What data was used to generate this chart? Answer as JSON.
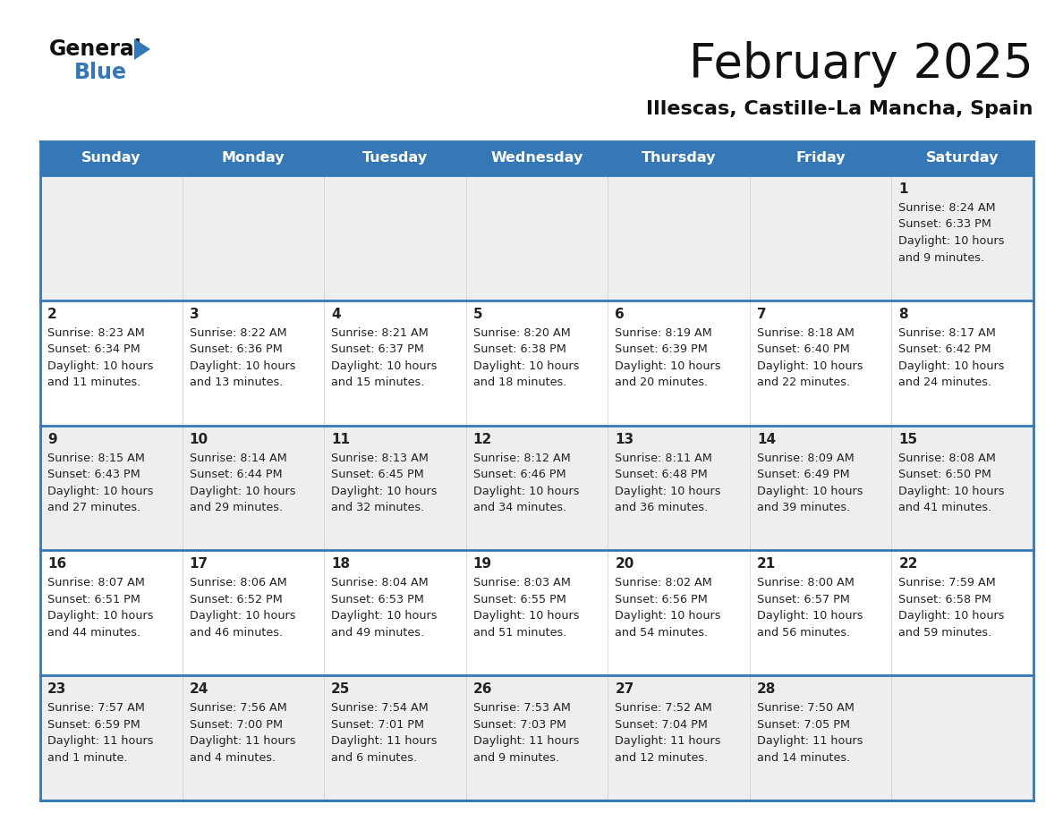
{
  "title": "February 2025",
  "subtitle": "Illescas, Castille-La Mancha, Spain",
  "days_of_week": [
    "Sunday",
    "Monday",
    "Tuesday",
    "Wednesday",
    "Thursday",
    "Friday",
    "Saturday"
  ],
  "header_bg": "#3578b5",
  "header_text": "#ffffff",
  "row_bg_gray": "#eeeeee",
  "row_bg_white": "#ffffff",
  "divider_color": "#3578b5",
  "text_color": "#222222",
  "calendar_data": [
    [
      null,
      null,
      null,
      null,
      null,
      null,
      {
        "day": "1",
        "sunrise": "8:24 AM",
        "sunset": "6:33 PM",
        "daylight_l1": "Daylight: 10 hours",
        "daylight_l2": "and 9 minutes."
      }
    ],
    [
      {
        "day": "2",
        "sunrise": "8:23 AM",
        "sunset": "6:34 PM",
        "daylight_l1": "Daylight: 10 hours",
        "daylight_l2": "and 11 minutes."
      },
      {
        "day": "3",
        "sunrise": "8:22 AM",
        "sunset": "6:36 PM",
        "daylight_l1": "Daylight: 10 hours",
        "daylight_l2": "and 13 minutes."
      },
      {
        "day": "4",
        "sunrise": "8:21 AM",
        "sunset": "6:37 PM",
        "daylight_l1": "Daylight: 10 hours",
        "daylight_l2": "and 15 minutes."
      },
      {
        "day": "5",
        "sunrise": "8:20 AM",
        "sunset": "6:38 PM",
        "daylight_l1": "Daylight: 10 hours",
        "daylight_l2": "and 18 minutes."
      },
      {
        "day": "6",
        "sunrise": "8:19 AM",
        "sunset": "6:39 PM",
        "daylight_l1": "Daylight: 10 hours",
        "daylight_l2": "and 20 minutes."
      },
      {
        "day": "7",
        "sunrise": "8:18 AM",
        "sunset": "6:40 PM",
        "daylight_l1": "Daylight: 10 hours",
        "daylight_l2": "and 22 minutes."
      },
      {
        "day": "8",
        "sunrise": "8:17 AM",
        "sunset": "6:42 PM",
        "daylight_l1": "Daylight: 10 hours",
        "daylight_l2": "and 24 minutes."
      }
    ],
    [
      {
        "day": "9",
        "sunrise": "8:15 AM",
        "sunset": "6:43 PM",
        "daylight_l1": "Daylight: 10 hours",
        "daylight_l2": "and 27 minutes."
      },
      {
        "day": "10",
        "sunrise": "8:14 AM",
        "sunset": "6:44 PM",
        "daylight_l1": "Daylight: 10 hours",
        "daylight_l2": "and 29 minutes."
      },
      {
        "day": "11",
        "sunrise": "8:13 AM",
        "sunset": "6:45 PM",
        "daylight_l1": "Daylight: 10 hours",
        "daylight_l2": "and 32 minutes."
      },
      {
        "day": "12",
        "sunrise": "8:12 AM",
        "sunset": "6:46 PM",
        "daylight_l1": "Daylight: 10 hours",
        "daylight_l2": "and 34 minutes."
      },
      {
        "day": "13",
        "sunrise": "8:11 AM",
        "sunset": "6:48 PM",
        "daylight_l1": "Daylight: 10 hours",
        "daylight_l2": "and 36 minutes."
      },
      {
        "day": "14",
        "sunrise": "8:09 AM",
        "sunset": "6:49 PM",
        "daylight_l1": "Daylight: 10 hours",
        "daylight_l2": "and 39 minutes."
      },
      {
        "day": "15",
        "sunrise": "8:08 AM",
        "sunset": "6:50 PM",
        "daylight_l1": "Daylight: 10 hours",
        "daylight_l2": "and 41 minutes."
      }
    ],
    [
      {
        "day": "16",
        "sunrise": "8:07 AM",
        "sunset": "6:51 PM",
        "daylight_l1": "Daylight: 10 hours",
        "daylight_l2": "and 44 minutes."
      },
      {
        "day": "17",
        "sunrise": "8:06 AM",
        "sunset": "6:52 PM",
        "daylight_l1": "Daylight: 10 hours",
        "daylight_l2": "and 46 minutes."
      },
      {
        "day": "18",
        "sunrise": "8:04 AM",
        "sunset": "6:53 PM",
        "daylight_l1": "Daylight: 10 hours",
        "daylight_l2": "and 49 minutes."
      },
      {
        "day": "19",
        "sunrise": "8:03 AM",
        "sunset": "6:55 PM",
        "daylight_l1": "Daylight: 10 hours",
        "daylight_l2": "and 51 minutes."
      },
      {
        "day": "20",
        "sunrise": "8:02 AM",
        "sunset": "6:56 PM",
        "daylight_l1": "Daylight: 10 hours",
        "daylight_l2": "and 54 minutes."
      },
      {
        "day": "21",
        "sunrise": "8:00 AM",
        "sunset": "6:57 PM",
        "daylight_l1": "Daylight: 10 hours",
        "daylight_l2": "and 56 minutes."
      },
      {
        "day": "22",
        "sunrise": "7:59 AM",
        "sunset": "6:58 PM",
        "daylight_l1": "Daylight: 10 hours",
        "daylight_l2": "and 59 minutes."
      }
    ],
    [
      {
        "day": "23",
        "sunrise": "7:57 AM",
        "sunset": "6:59 PM",
        "daylight_l1": "Daylight: 11 hours",
        "daylight_l2": "and 1 minute."
      },
      {
        "day": "24",
        "sunrise": "7:56 AM",
        "sunset": "7:00 PM",
        "daylight_l1": "Daylight: 11 hours",
        "daylight_l2": "and 4 minutes."
      },
      {
        "day": "25",
        "sunrise": "7:54 AM",
        "sunset": "7:01 PM",
        "daylight_l1": "Daylight: 11 hours",
        "daylight_l2": "and 6 minutes."
      },
      {
        "day": "26",
        "sunrise": "7:53 AM",
        "sunset": "7:03 PM",
        "daylight_l1": "Daylight: 11 hours",
        "daylight_l2": "and 9 minutes."
      },
      {
        "day": "27",
        "sunrise": "7:52 AM",
        "sunset": "7:04 PM",
        "daylight_l1": "Daylight: 11 hours",
        "daylight_l2": "and 12 minutes."
      },
      {
        "day": "28",
        "sunrise": "7:50 AM",
        "sunset": "7:05 PM",
        "daylight_l1": "Daylight: 11 hours",
        "daylight_l2": "and 14 minutes."
      },
      null
    ]
  ]
}
